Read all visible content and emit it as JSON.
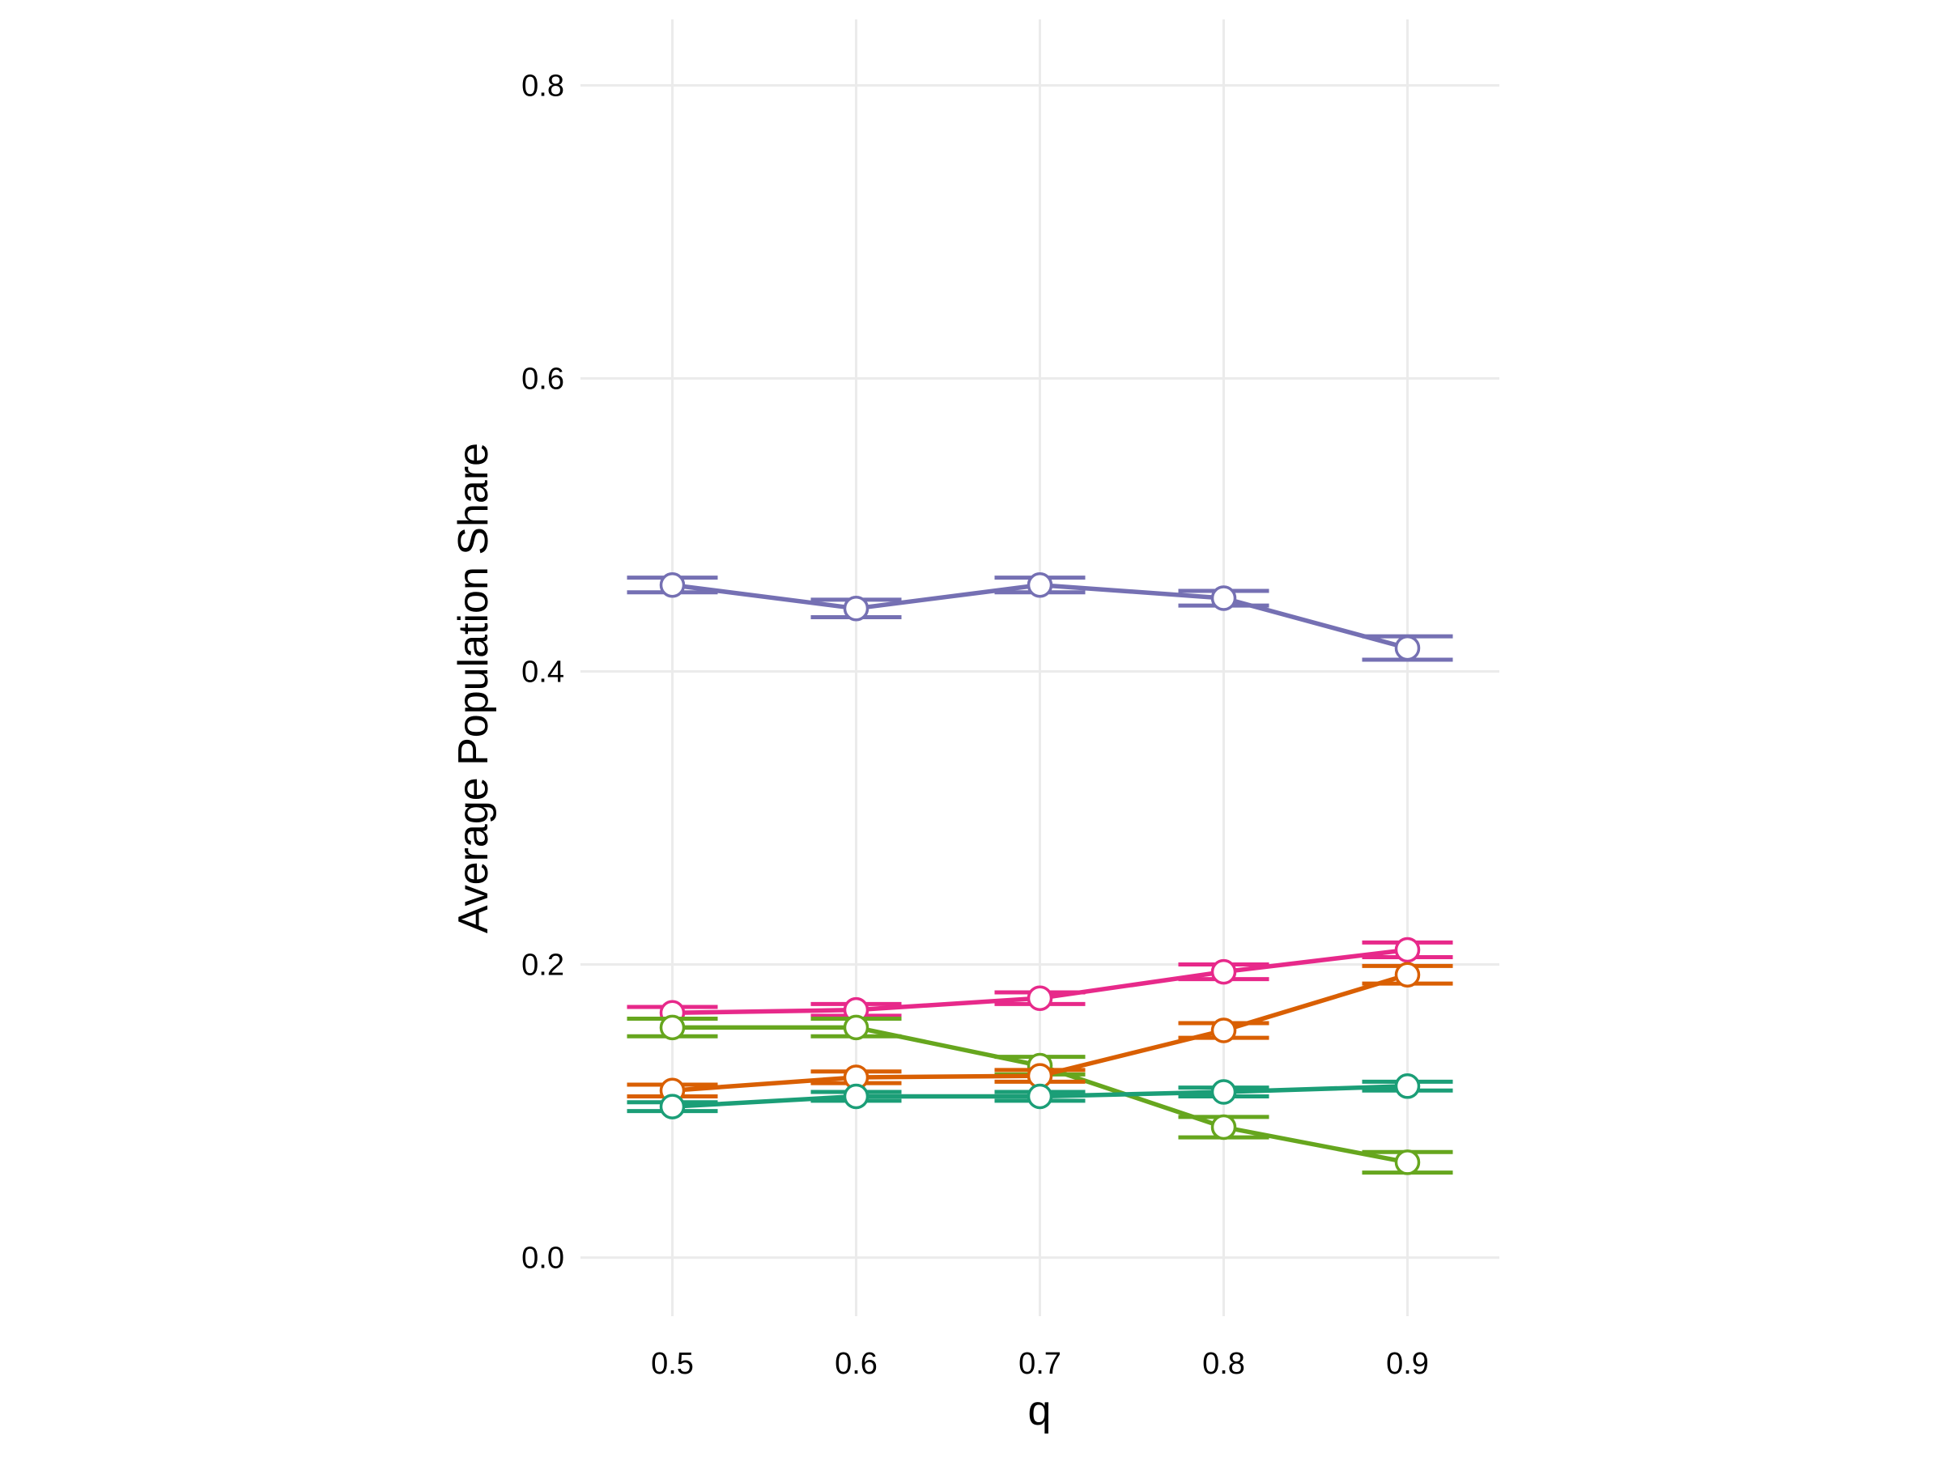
{
  "chart_data": {
    "type": "line",
    "title": "",
    "xlabel": "q",
    "ylabel": "Average Population Share",
    "x": [
      0.5,
      0.6,
      0.7,
      0.8,
      0.9
    ],
    "x_tick_labels": [
      "0.5",
      "0.6",
      "0.7",
      "0.8",
      "0.9"
    ],
    "y_tick_labels": [
      "0.0",
      "0.2",
      "0.4",
      "0.6",
      "0.8"
    ],
    "y_ticks": [
      0.0,
      0.2,
      0.4,
      0.6,
      0.8
    ],
    "xlim": [
      0.45,
      0.95
    ],
    "ylim": [
      -0.04,
      0.845
    ],
    "grid": true,
    "legend": "none",
    "error_bars": true,
    "marker": "open circle, white fill",
    "series": [
      {
        "color": "#7570B3",
        "values": [
          0.459,
          0.443,
          0.459,
          0.45,
          0.416
        ],
        "errors": [
          0.005,
          0.006,
          0.005,
          0.005,
          0.008
        ]
      },
      {
        "color": "#E7298A",
        "values": [
          0.167,
          0.169,
          0.177,
          0.195,
          0.21
        ],
        "errors": [
          0.004,
          0.004,
          0.004,
          0.005,
          0.005
        ]
      },
      {
        "color": "#66A61E",
        "values": [
          0.157,
          0.157,
          0.131,
          0.089,
          0.065
        ],
        "errors": [
          0.006,
          0.006,
          0.006,
          0.007,
          0.007
        ]
      },
      {
        "color": "#D95F02",
        "values": [
          0.114,
          0.123,
          0.124,
          0.155,
          0.193
        ],
        "errors": [
          0.004,
          0.004,
          0.004,
          0.005,
          0.006
        ]
      },
      {
        "color": "#1B9E77",
        "values": [
          0.103,
          0.11,
          0.11,
          0.113,
          0.117
        ],
        "errors": [
          0.003,
          0.003,
          0.003,
          0.003,
          0.003
        ]
      }
    ]
  }
}
